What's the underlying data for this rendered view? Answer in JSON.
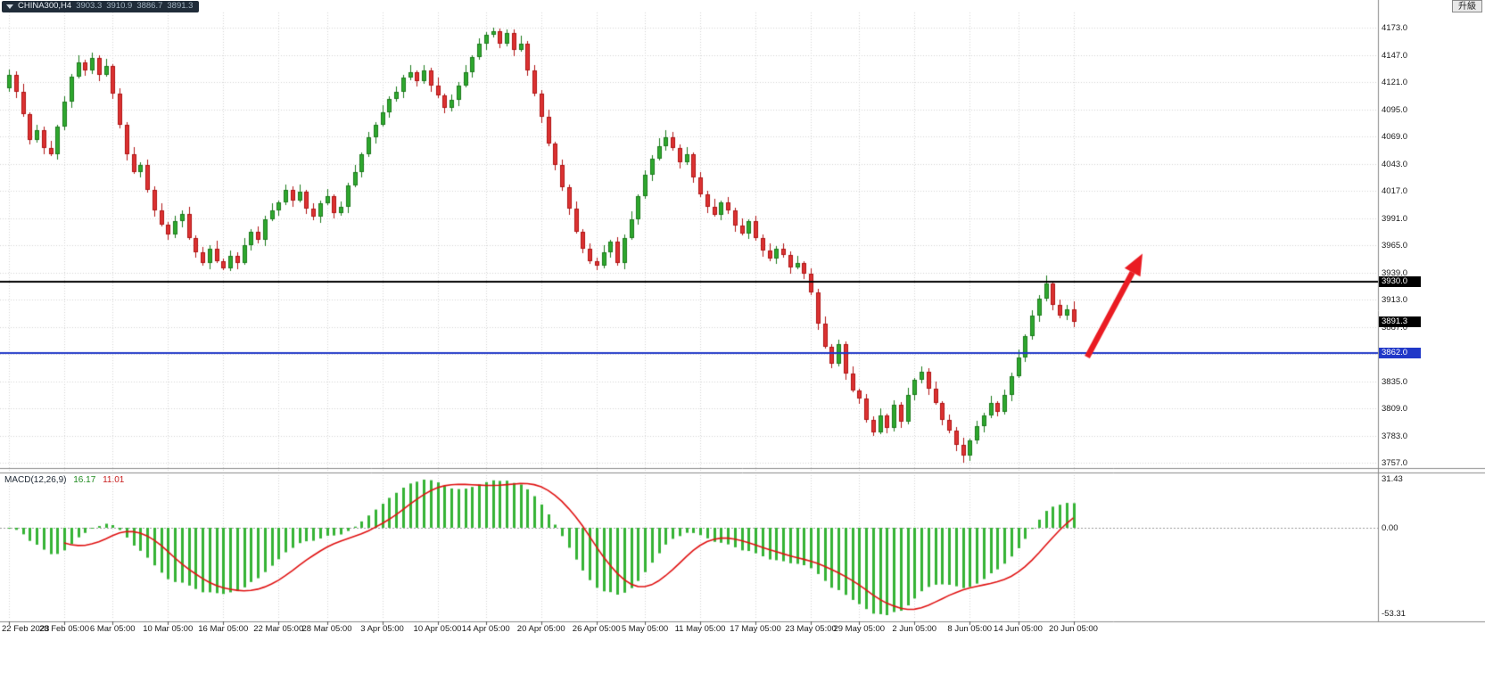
{
  "header": {
    "symbol_timeframe": "CHINA300,H4",
    "open": "3903.3",
    "high": "3910.9",
    "low": "3886.7",
    "close": "3891.3",
    "upgrade_label": "升級"
  },
  "indicator": {
    "label": "MACD(12,26,9)",
    "main_value": "16.17",
    "signal_value": "11.01"
  },
  "price_axis": {
    "ticks": [
      "4173.0",
      "4147.0",
      "4121.0",
      "4095.0",
      "4069.0",
      "4043.0",
      "4017.0",
      "3991.0",
      "3965.0",
      "3939.0",
      "3913.0",
      "3887.0",
      "3861.0",
      "3835.0",
      "3809.0",
      "3783.0",
      "3757.0"
    ]
  },
  "macd_axis": {
    "labels": [
      "31.43",
      "0.00",
      "-53.31"
    ]
  },
  "levels": [
    {
      "price": 3930.0,
      "label": "3930.0",
      "color": "#000000"
    },
    {
      "price": 3862.0,
      "label": "3862.0",
      "color": "#2038c8"
    }
  ],
  "current_price": {
    "value": 3891.3,
    "label": "3891.3",
    "color": "#000000"
  },
  "time_axis": {
    "labels": [
      "22 Feb 2023",
      "28 Feb 05:00",
      "6 Mar 05:00",
      "10 Mar 05:00",
      "16 Mar 05:00",
      "22 Mar 05:00",
      "28 Mar 05:00",
      "3 Apr 05:00",
      "10 Apr 05:00",
      "14 Apr 05:00",
      "20 Apr 05:00",
      "26 Apr 05:00",
      "5 May 05:00",
      "11 May 05:00",
      "17 May 05:00",
      "23 May 05:00",
      "29 May 05:00",
      "2 Jun 05:00",
      "8 Jun 05:00",
      "14 Jun 05:00",
      "20 Jun 05:00"
    ]
  },
  "chart_data": {
    "type": "candlestick",
    "symbol": "CHINA300",
    "timeframe": "H4",
    "last_ohlc": {
      "open": 3903.3,
      "high": 3910.9,
      "low": 3886.7,
      "close": 3891.3
    },
    "price_axis_range": [
      3757.0,
      4173.0
    ],
    "grid": true,
    "tick_indices": [
      0,
      8,
      15,
      23,
      31,
      39,
      46,
      54,
      62,
      69,
      77,
      85,
      92,
      100,
      108,
      116,
      123,
      131,
      139,
      146,
      154
    ],
    "candles": [
      [
        4115,
        4133,
        4112,
        4128
      ],
      [
        4128,
        4131,
        4106,
        4112
      ],
      [
        4112,
        4119,
        4088,
        4090
      ],
      [
        4090,
        4092,
        4061,
        4066
      ],
      [
        4066,
        4080,
        4063,
        4075
      ],
      [
        4075,
        4078,
        4052,
        4058
      ],
      [
        4058,
        4065,
        4050,
        4052
      ],
      [
        4052,
        4080,
        4047,
        4078
      ],
      [
        4078,
        4107,
        4075,
        4102
      ],
      [
        4102,
        4129,
        4096,
        4126
      ],
      [
        4126,
        4147,
        4124,
        4140
      ],
      [
        4140,
        4142,
        4127,
        4132
      ],
      [
        4132,
        4149,
        4129,
        4144
      ],
      [
        4144,
        4147,
        4122,
        4128
      ],
      [
        4128,
        4143,
        4126,
        4136
      ],
      [
        4136,
        4138,
        4105,
        4110
      ],
      [
        4110,
        4115,
        4077,
        4080
      ],
      [
        4080,
        4083,
        4046,
        4052
      ],
      [
        4052,
        4059,
        4033,
        4035
      ],
      [
        4035,
        4044,
        4030,
        4042
      ],
      [
        4042,
        4047,
        4015,
        4018
      ],
      [
        4018,
        4021,
        3992,
        3998
      ],
      [
        3998,
        4005,
        3983,
        3985
      ],
      [
        3985,
        3987,
        3970,
        3975
      ],
      [
        3975,
        3993,
        3972,
        3988
      ],
      [
        3988,
        3998,
        3982,
        3995
      ],
      [
        3995,
        4002,
        3970,
        3972
      ],
      [
        3972,
        3974,
        3953,
        3958
      ],
      [
        3958,
        3963,
        3945,
        3948
      ],
      [
        3948,
        3965,
        3942,
        3962
      ],
      [
        3962,
        3969,
        3948,
        3950
      ],
      [
        3950,
        3952,
        3941,
        3943
      ],
      [
        3943,
        3960,
        3940,
        3955
      ],
      [
        3955,
        3958,
        3942,
        3948
      ],
      [
        3948,
        3972,
        3946,
        3965
      ],
      [
        3965,
        3980,
        3960,
        3978
      ],
      [
        3978,
        3983,
        3967,
        3970
      ],
      [
        3970,
        3993,
        3964,
        3990
      ],
      [
        3990,
        4005,
        3988,
        3998
      ],
      [
        3998,
        4008,
        3993,
        4006
      ],
      [
        4006,
        4023,
        4003,
        4018
      ],
      [
        4018,
        4021,
        4002,
        4008
      ],
      [
        4008,
        4023,
        4006,
        4016
      ],
      [
        4016,
        4018,
        3995,
        4000
      ],
      [
        4000,
        4005,
        3989,
        3992
      ],
      [
        3992,
        4008,
        3986,
        4005
      ],
      [
        4005,
        4019,
        4003,
        4012
      ],
      [
        4012,
        4014,
        3991,
        3996
      ],
      [
        3996,
        4007,
        3993,
        4002
      ],
      [
        4002,
        4025,
        3996,
        4022
      ],
      [
        4022,
        4042,
        4020,
        4035
      ],
      [
        4035,
        4054,
        4030,
        4052
      ],
      [
        4052,
        4073,
        4049,
        4068
      ],
      [
        4068,
        4083,
        4062,
        4080
      ],
      [
        4080,
        4099,
        4078,
        4092
      ],
      [
        4092,
        4107,
        4087,
        4105
      ],
      [
        4105,
        4117,
        4102,
        4112
      ],
      [
        4112,
        4128,
        4106,
        4125
      ],
      [
        4125,
        4137,
        4123,
        4130
      ],
      [
        4130,
        4132,
        4117,
        4122
      ],
      [
        4122,
        4137,
        4119,
        4132
      ],
      [
        4132,
        4135,
        4112,
        4118
      ],
      [
        4118,
        4125,
        4106,
        4108
      ],
      [
        4108,
        4110,
        4091,
        4096
      ],
      [
        4096,
        4109,
        4093,
        4104
      ],
      [
        4104,
        4121,
        4098,
        4118
      ],
      [
        4118,
        4137,
        4116,
        4130
      ],
      [
        4130,
        4147,
        4125,
        4145
      ],
      [
        4145,
        4163,
        4142,
        4158
      ],
      [
        4158,
        4169,
        4152,
        4166
      ],
      [
        4166,
        4173,
        4164,
        4170
      ],
      [
        4170,
        4172,
        4153,
        4158
      ],
      [
        4158,
        4171,
        4155,
        4168
      ],
      [
        4168,
        4171,
        4146,
        4152
      ],
      [
        4152,
        4165,
        4150,
        4158
      ],
      [
        4158,
        4160,
        4127,
        4132
      ],
      [
        4132,
        4137,
        4107,
        4110
      ],
      [
        4110,
        4113,
        4082,
        4088
      ],
      [
        4088,
        4095,
        4060,
        4062
      ],
      [
        4062,
        4064,
        4037,
        4042
      ],
      [
        4042,
        4047,
        4017,
        4020
      ],
      [
        4020,
        4023,
        3994,
        4000
      ],
      [
        4000,
        4007,
        3976,
        3978
      ],
      [
        3978,
        3980,
        3957,
        3962
      ],
      [
        3962,
        3967,
        3947,
        3950
      ],
      [
        3950,
        3953,
        3941,
        3945
      ],
      [
        3945,
        3965,
        3943,
        3958
      ],
      [
        3958,
        3970,
        3953,
        3968
      ],
      [
        3968,
        3973,
        3945,
        3948
      ],
      [
        3948,
        3975,
        3942,
        3972
      ],
      [
        3972,
        3997,
        3970,
        3990
      ],
      [
        3990,
        4014,
        3985,
        4012
      ],
      [
        4012,
        4037,
        4009,
        4032
      ],
      [
        4032,
        4051,
        4026,
        4048
      ],
      [
        4048,
        4067,
        4046,
        4060
      ],
      [
        4060,
        4075,
        4055,
        4068
      ],
      [
        4068,
        4073,
        4055,
        4058
      ],
      [
        4058,
        4061,
        4038,
        4044
      ],
      [
        4044,
        4059,
        4042,
        4052
      ],
      [
        4052,
        4054,
        4025,
        4030
      ],
      [
        4030,
        4035,
        4011,
        4014
      ],
      [
        4014,
        4017,
        3996,
        4002
      ],
      [
        4002,
        4009,
        3992,
        3994
      ],
      [
        3994,
        4008,
        3989,
        4006
      ],
      [
        4006,
        4011,
        3995,
        3998
      ],
      [
        3998,
        4001,
        3978,
        3984
      ],
      [
        3984,
        3991,
        3974,
        3976
      ],
      [
        3976,
        3990,
        3971,
        3988
      ],
      [
        3988,
        3993,
        3969,
        3972
      ],
      [
        3972,
        3975,
        3954,
        3960
      ],
      [
        3960,
        3967,
        3950,
        3952
      ],
      [
        3952,
        3964,
        3947,
        3962
      ],
      [
        3962,
        3967,
        3953,
        3956
      ],
      [
        3956,
        3959,
        3938,
        3944
      ],
      [
        3944,
        3955,
        3942,
        3948
      ],
      [
        3948,
        3950,
        3933,
        3938
      ],
      [
        3938,
        3943,
        3917,
        3920
      ],
      [
        3920,
        3923,
        3884,
        3890
      ],
      [
        3890,
        3897,
        3866,
        3868
      ],
      [
        3868,
        3870,
        3847,
        3852
      ],
      [
        3852,
        3875,
        3849,
        3870
      ],
      [
        3870,
        3873,
        3836,
        3842
      ],
      [
        3842,
        3849,
        3824,
        3826
      ],
      [
        3826,
        3828,
        3813,
        3818
      ],
      [
        3818,
        3823,
        3795,
        3798
      ],
      [
        3798,
        3801,
        3783,
        3786
      ],
      [
        3786,
        3809,
        3784,
        3802
      ],
      [
        3802,
        3804,
        3785,
        3790
      ],
      [
        3790,
        3817,
        3787,
        3812
      ],
      [
        3812,
        3815,
        3790,
        3796
      ],
      [
        3796,
        3829,
        3794,
        3822
      ],
      [
        3822,
        3838,
        3817,
        3836
      ],
      [
        3836,
        3849,
        3833,
        3844
      ],
      [
        3844,
        3847,
        3822,
        3828
      ],
      [
        3828,
        3835,
        3812,
        3814
      ],
      [
        3814,
        3816,
        3793,
        3798
      ],
      [
        3798,
        3803,
        3785,
        3788
      ],
      [
        3788,
        3791,
        3768,
        3774
      ],
      [
        3774,
        3781,
        3757,
        3764
      ],
      [
        3764,
        3780,
        3759,
        3778
      ],
      [
        3778,
        3797,
        3775,
        3792
      ],
      [
        3792,
        3805,
        3786,
        3802
      ],
      [
        3802,
        3821,
        3800,
        3814
      ],
      [
        3814,
        3816,
        3801,
        3806
      ],
      [
        3806,
        3827,
        3803,
        3822
      ],
      [
        3822,
        3843,
        3816,
        3840
      ],
      [
        3840,
        3865,
        3838,
        3858
      ],
      [
        3858,
        3880,
        3853,
        3878
      ],
      [
        3878,
        3903,
        3875,
        3898
      ],
      [
        3898,
        3917,
        3892,
        3914
      ],
      [
        3914,
        3936,
        3911,
        3928
      ],
      [
        3928,
        3930,
        3903,
        3908
      ],
      [
        3908,
        3913,
        3895,
        3898
      ],
      [
        3898,
        3908,
        3893,
        3903.3
      ],
      [
        3903.3,
        3910.9,
        3886.7,
        3891.3
      ]
    ],
    "horizontal_lines": [
      {
        "price": 3930.0,
        "color": "#000000"
      },
      {
        "price": 3862.0,
        "color": "#2038c8"
      }
    ],
    "annotations": [
      {
        "type": "arrow",
        "from": {
          "index": 156,
          "price": 3858
        },
        "to": {
          "index": 164,
          "price": 3957
        },
        "color": "#ea1b22"
      }
    ],
    "colors": {
      "bull_fill": "#2ea82e",
      "bull_border": "#1b7a1b",
      "bear_fill": "#dc3232",
      "bear_border": "#b01414",
      "grid": "#d6d6d6",
      "background": "#ffffff"
    },
    "sub_chart": {
      "type": "macd_histogram",
      "label": "MACD(12,26,9)",
      "fast": 12,
      "slow": 26,
      "signal": 9,
      "main_value": 16.17,
      "signal_value": 11.01,
      "axis": {
        "max": 31.43,
        "zero": 0.0,
        "min": -53.31
      },
      "histogram_color": "#35b335",
      "signal_color": "#e01212"
    }
  }
}
